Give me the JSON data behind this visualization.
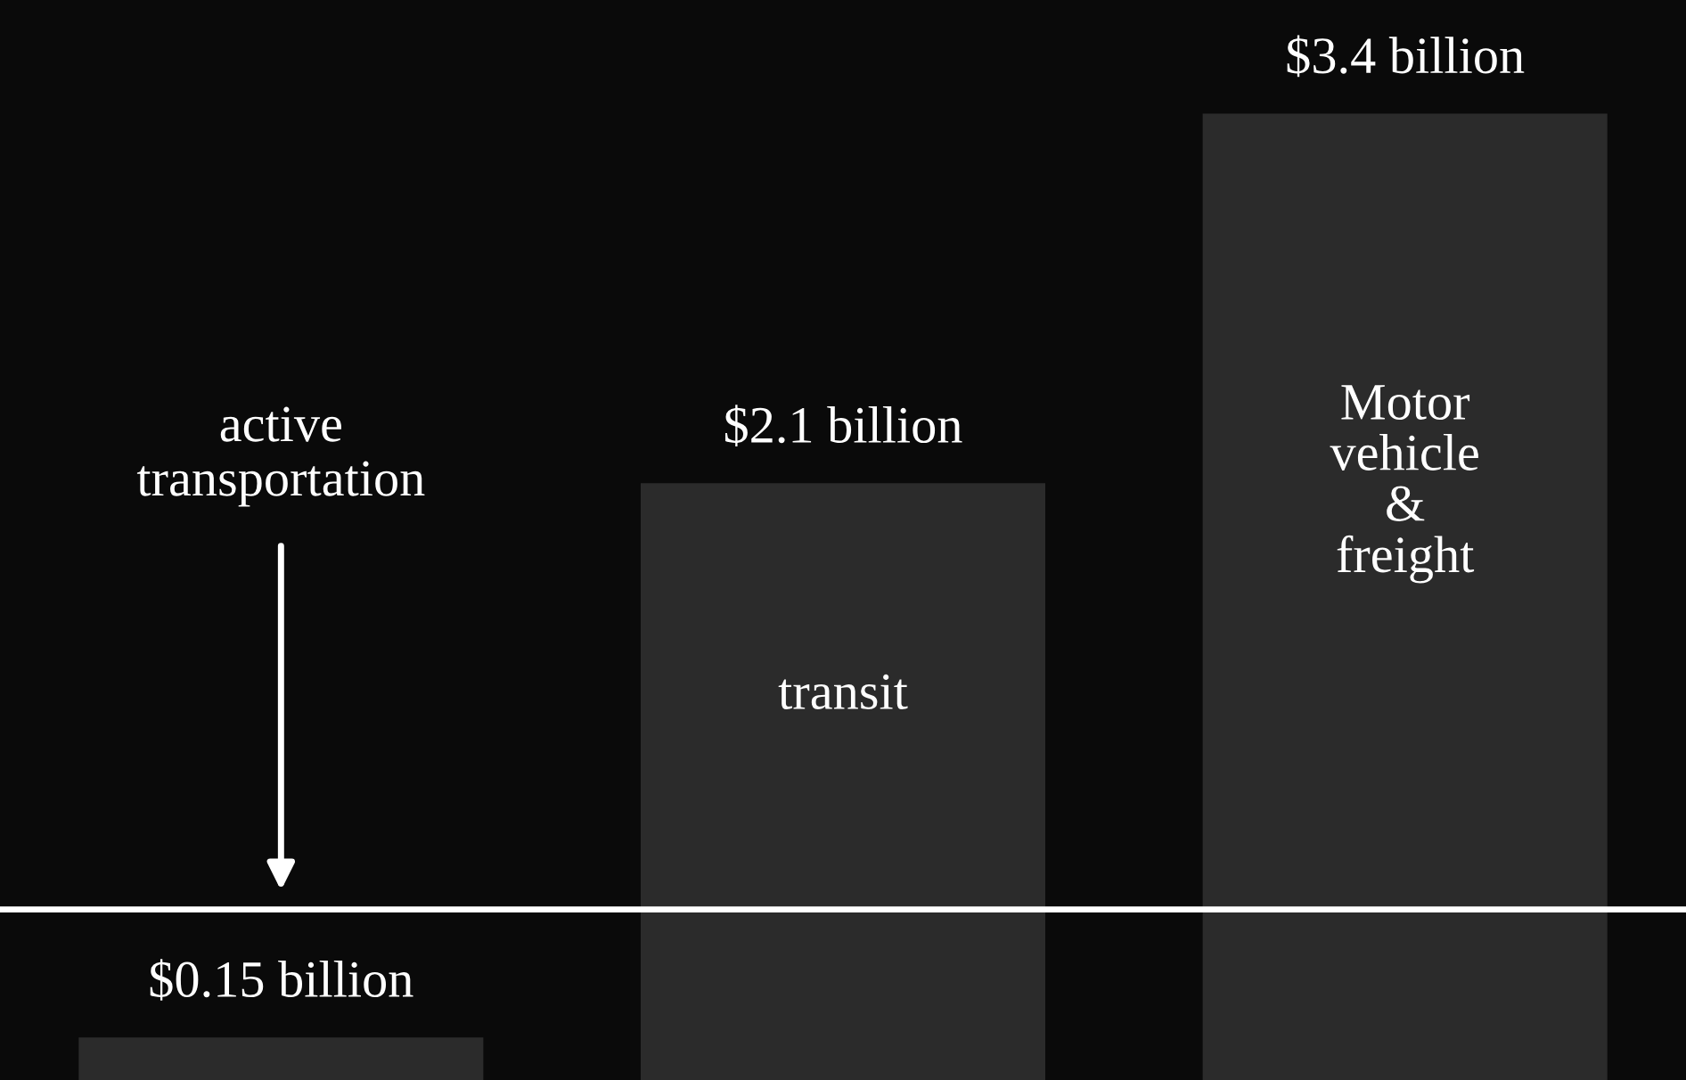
{
  "chart_data": {
    "type": "bar",
    "categories": [
      "active transportation",
      "transit",
      "Motor vehicle & freight"
    ],
    "values": [
      0.15,
      2.1,
      3.4
    ],
    "value_labels": [
      "$0.15 billion",
      "$2.1 billion",
      "$3.4 billion"
    ],
    "color": "#2b2b2b",
    "ylim": [
      0,
      3.8
    ],
    "ref_lines": [
      {
        "axis": "y",
        "value": 0.6,
        "color": "#ffffff"
      }
    ]
  }
}
